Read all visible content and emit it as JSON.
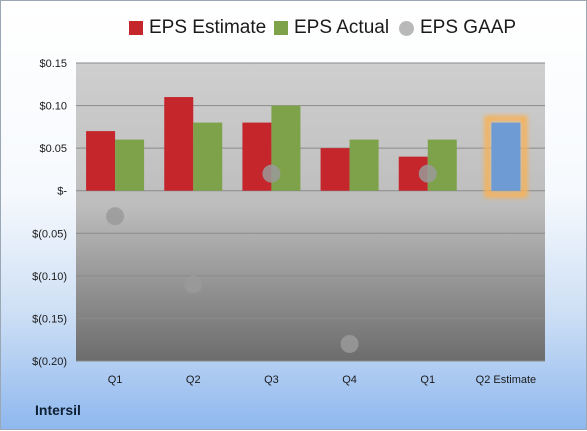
{
  "legend": {
    "estimate": "EPS Estimate",
    "actual": "EPS Actual",
    "gaap": "EPS GAAP"
  },
  "brand": "Intersil",
  "colors": {
    "estimate": "#c4262b",
    "actual": "#7da24a",
    "gaap": "#b9b9b9",
    "next_estimate": "#6e9bd4",
    "next_estimate_glow": "#f5b25a"
  },
  "chart_data": {
    "type": "bar",
    "categories": [
      "Q1",
      "Q2",
      "Q3",
      "Q4",
      "Q1",
      "Q2 Estimate"
    ],
    "ylim": [
      -0.2,
      0.15
    ],
    "yticks": [
      0.15,
      0.1,
      0.05,
      0,
      -0.05,
      -0.1,
      -0.15,
      -0.2
    ],
    "ytick_labels": [
      "$0.15",
      "$0.10",
      "$0.05",
      "$-",
      "$(0.05)",
      "$(0.10)",
      "$(0.15)",
      "$(0.20)"
    ],
    "grid": true,
    "legend_position": "top",
    "series": [
      {
        "name": "EPS Estimate",
        "values": [
          0.07,
          0.11,
          0.08,
          0.05,
          0.04,
          null
        ]
      },
      {
        "name": "EPS Actual",
        "values": [
          0.06,
          0.08,
          0.1,
          0.06,
          0.06,
          null
        ]
      },
      {
        "name": "EPS GAAP",
        "values": [
          -0.03,
          -0.11,
          0.02,
          -0.18,
          0.02,
          null
        ]
      }
    ],
    "next_quarter_estimate": {
      "category": "Q2 Estimate",
      "value": 0.08
    }
  }
}
